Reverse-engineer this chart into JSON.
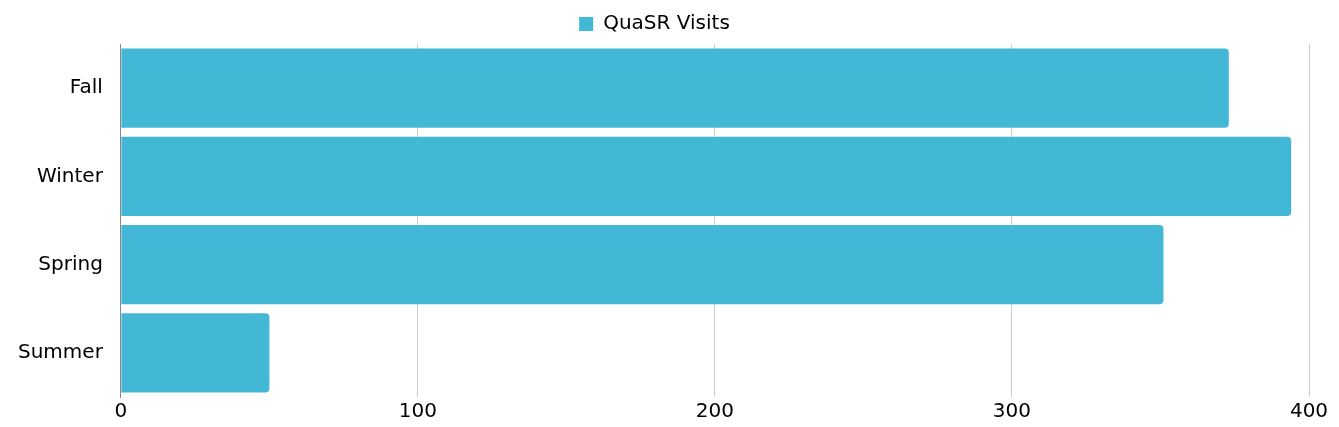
{
  "chart_data": {
    "type": "bar",
    "orientation": "horizontal",
    "categories": [
      "Fall",
      "Winter",
      "Spring",
      "Summer"
    ],
    "series": [
      {
        "name": "QuaSR Visits",
        "color": "#43b7d6",
        "values": [
          373,
          394,
          351,
          50
        ]
      }
    ],
    "xlim": [
      0,
      400
    ],
    "xticks": [
      0,
      100,
      200,
      300,
      400
    ],
    "grid": "x",
    "legend": "top"
  }
}
